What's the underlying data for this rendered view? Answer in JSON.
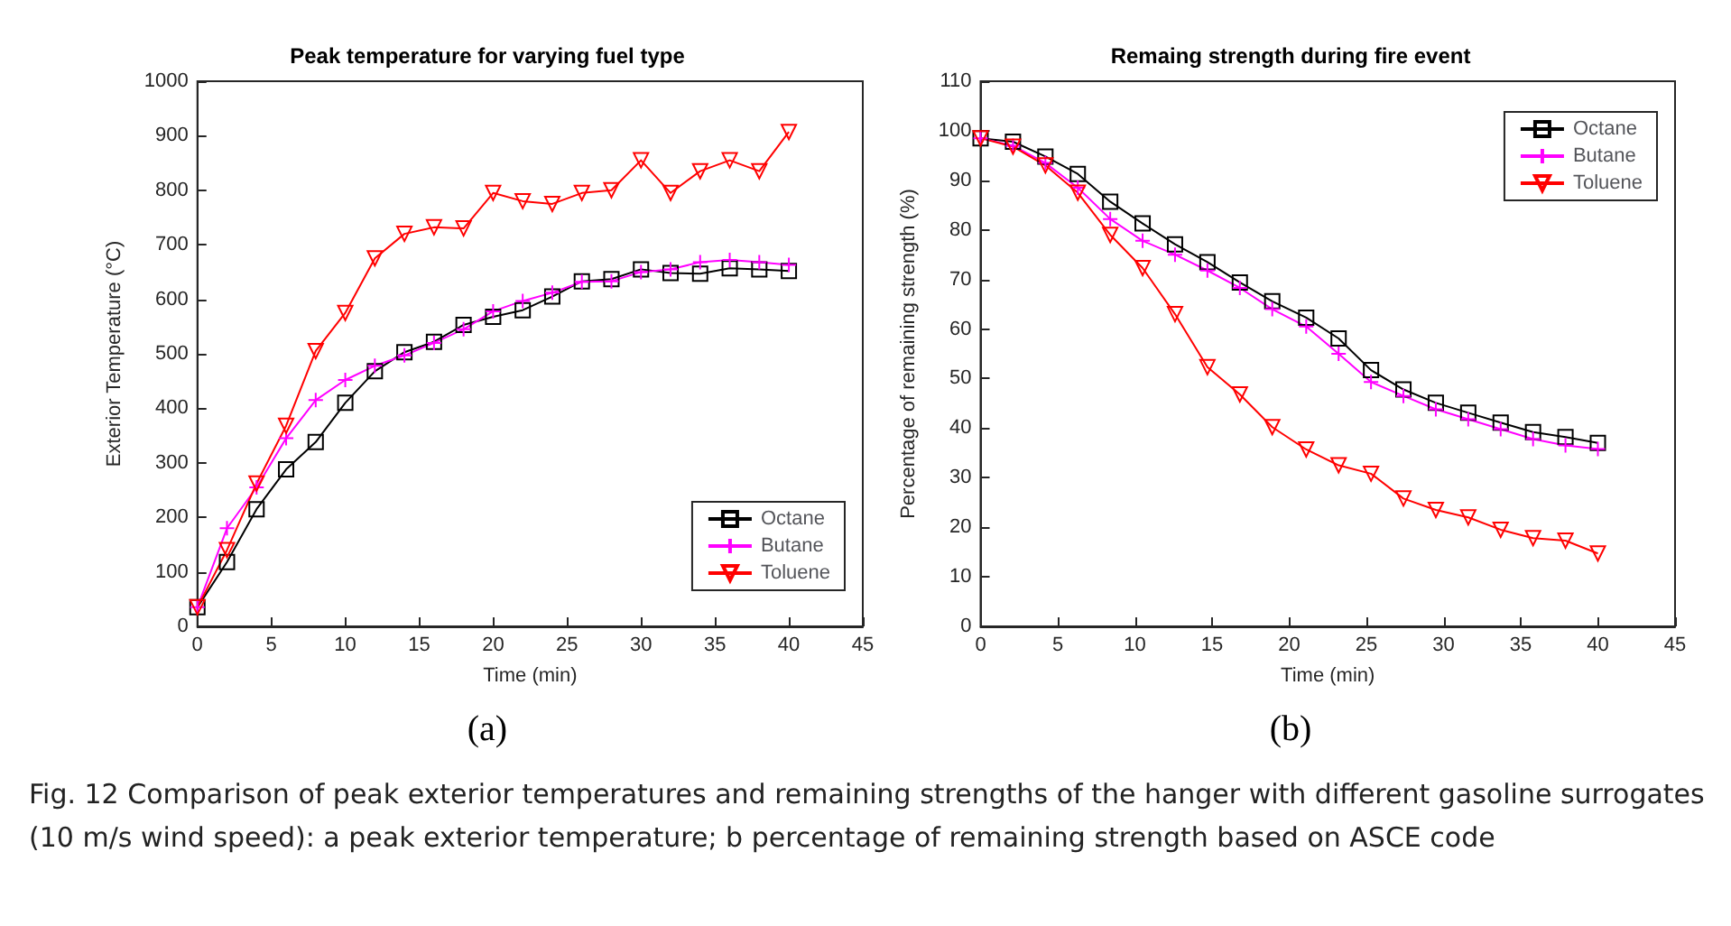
{
  "chart_data": [
    {
      "type": "line",
      "title": "Peak temperature for varying fuel type",
      "xlabel": "Time (min)",
      "ylabel": "Exterior Temperature (°C)",
      "x": [
        0,
        2,
        4,
        6,
        8,
        10,
        12,
        14,
        16,
        18,
        20,
        22,
        24,
        26,
        28,
        30,
        32,
        34,
        36,
        38,
        40
      ],
      "series": [
        {
          "name": "Octane",
          "color": "#000000",
          "marker": "square",
          "values": [
            35,
            118,
            215,
            288,
            338,
            410,
            468,
            503,
            522,
            553,
            568,
            580,
            605,
            633,
            637,
            655,
            648,
            647,
            657,
            655,
            652
          ]
        },
        {
          "name": "Butane",
          "color": "#ff00ff",
          "marker": "cross",
          "values": [
            35,
            180,
            255,
            345,
            415,
            452,
            478,
            497,
            520,
            545,
            578,
            597,
            612,
            632,
            633,
            650,
            655,
            668,
            672,
            668,
            663
          ]
        },
        {
          "name": "Toluene",
          "color": "#ff0000",
          "marker": "triangle",
          "values": [
            35,
            140,
            262,
            368,
            505,
            575,
            675,
            720,
            732,
            730,
            795,
            780,
            775,
            795,
            800,
            855,
            795,
            835,
            855,
            835,
            907
          ]
        }
      ],
      "xlim": [
        0,
        45
      ],
      "xticks": [
        0,
        5,
        10,
        15,
        20,
        25,
        30,
        35,
        40,
        45
      ],
      "ylim": [
        0,
        1000
      ],
      "yticks": [
        0,
        100,
        200,
        300,
        400,
        500,
        600,
        700,
        800,
        900,
        1000
      ],
      "legend": "bottom right",
      "line_style": "solid",
      "grid": false,
      "annotations": [
        "(a)"
      ]
    },
    {
      "type": "line",
      "title": "Remaing strength during fire event",
      "xlabel": "Time (min)",
      "ylabel": "Percentage of remaining strength (%)",
      "x": [
        0,
        2.1,
        4.2,
        6.3,
        8.4,
        10.5,
        12.6,
        14.7,
        16.8,
        18.9,
        21.1,
        23.2,
        25.3,
        27.4,
        29.5,
        31.6,
        33.7,
        35.8,
        37.9,
        40
      ],
      "series": [
        {
          "name": "Octane",
          "color": "#000000",
          "marker": "square",
          "values": [
            98.5,
            97.8,
            94.8,
            91.3,
            85.7,
            81.3,
            77.1,
            73.5,
            69.4,
            65.6,
            62.3,
            58.1,
            51.7,
            47.8,
            45.1,
            43.1,
            41.1,
            39.2,
            38.2,
            37.0
          ]
        },
        {
          "name": "Butane",
          "color": "#ff00ff",
          "marker": "cross",
          "values": [
            98.5,
            97.0,
            93.5,
            88.5,
            82.2,
            77.8,
            75.0,
            71.8,
            68.3,
            64.0,
            60.5,
            55.0,
            49.3,
            46.5,
            43.8,
            41.8,
            39.8,
            37.8,
            36.5,
            35.8
          ]
        },
        {
          "name": "Toluene",
          "color": "#ff0000",
          "marker": "triangle",
          "values": [
            98.5,
            96.8,
            93.0,
            87.5,
            79.0,
            72.3,
            63.0,
            52.3,
            46.8,
            40.2,
            35.7,
            32.5,
            30.8,
            25.8,
            23.5,
            22.0,
            19.5,
            17.8,
            17.3,
            14.7
          ]
        }
      ],
      "xlim": [
        0,
        45
      ],
      "xticks": [
        0,
        5,
        10,
        15,
        20,
        25,
        30,
        35,
        40,
        45
      ],
      "ylim": [
        0,
        110
      ],
      "yticks": [
        0,
        10,
        20,
        30,
        40,
        50,
        60,
        70,
        80,
        90,
        100,
        110
      ],
      "legend": "top right",
      "line_style": "solid",
      "grid": false,
      "annotations": [
        "(b)",
        "Fig. 12 Comparison of peak exterior temperatures and remaining strengths of the hanger with different gasoline surrogates (10 m/s wind speed): a peak exterior temperature; b percentage of remaining strength based on ASCE code"
      ]
    }
  ]
}
